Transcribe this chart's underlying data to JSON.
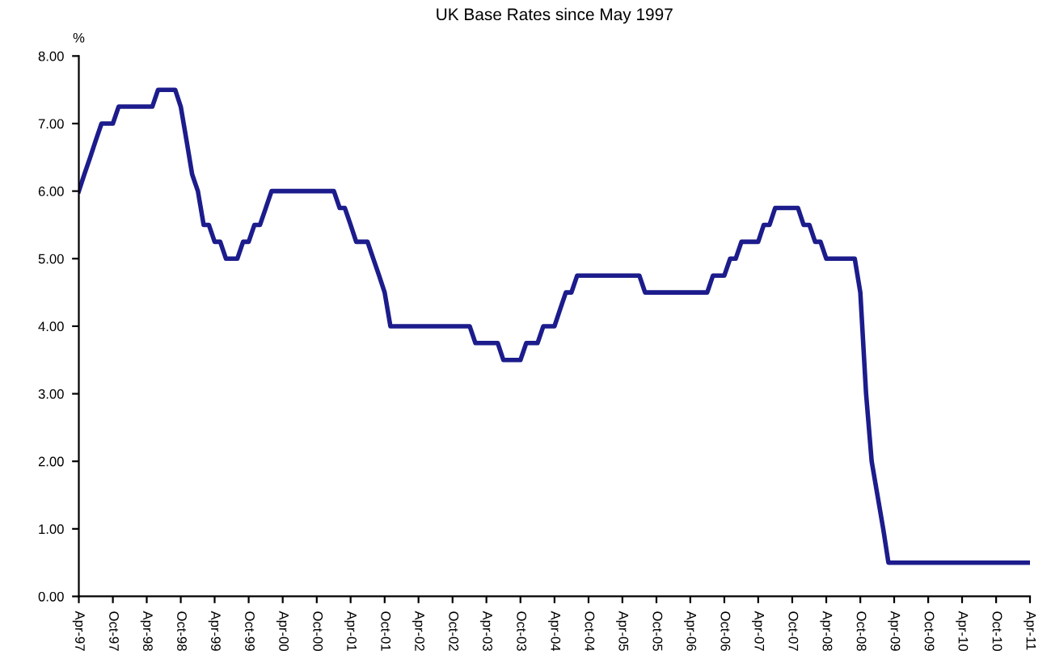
{
  "chart_data": {
    "type": "line",
    "title": "UK Base Rates since May 1997",
    "ylabel": "%",
    "series": [
      {
        "color": "#1c1c8c",
        "x": [
          "1997-04",
          "1997-05",
          "1997-06",
          "1997-07",
          "1997-08",
          "1997-10",
          "1997-11",
          "1998-05",
          "1998-06",
          "1998-09",
          "1998-10",
          "1998-11",
          "1998-12",
          "1999-01",
          "1999-02",
          "1999-03",
          "1999-04",
          "1999-05",
          "1999-06",
          "1999-08",
          "1999-09",
          "1999-10",
          "1999-11",
          "1999-12",
          "2000-01",
          "2000-02",
          "2001-01",
          "2001-02",
          "2001-03",
          "2001-04",
          "2001-05",
          "2001-07",
          "2001-08",
          "2001-09",
          "2001-10",
          "2001-11",
          "2003-01",
          "2003-02",
          "2003-06",
          "2003-07",
          "2003-10",
          "2003-11",
          "2004-01",
          "2004-02",
          "2004-04",
          "2004-05",
          "2004-06",
          "2004-07",
          "2004-08",
          "2005-07",
          "2005-08",
          "2006-07",
          "2006-08",
          "2006-10",
          "2006-11",
          "2006-12",
          "2007-01",
          "2007-04",
          "2007-05",
          "2007-06",
          "2007-07",
          "2007-11",
          "2007-12",
          "2008-01",
          "2008-02",
          "2008-03",
          "2008-04",
          "2008-09",
          "2008-10",
          "2008-11",
          "2008-12",
          "2009-01",
          "2009-02",
          "2009-03",
          "2011-04"
        ],
        "values": [
          6.0,
          6.25,
          6.5,
          6.75,
          7.0,
          7.0,
          7.25,
          7.25,
          7.5,
          7.5,
          7.25,
          6.75,
          6.25,
          6.0,
          5.5,
          5.5,
          5.25,
          5.25,
          5.0,
          5.0,
          5.25,
          5.25,
          5.5,
          5.5,
          5.75,
          6.0,
          6.0,
          5.75,
          5.75,
          5.5,
          5.25,
          5.25,
          5.0,
          4.75,
          4.5,
          4.0,
          4.0,
          3.75,
          3.75,
          3.5,
          3.5,
          3.75,
          3.75,
          4.0,
          4.0,
          4.25,
          4.5,
          4.5,
          4.75,
          4.75,
          4.5,
          4.5,
          4.75,
          4.75,
          5.0,
          5.0,
          5.25,
          5.25,
          5.5,
          5.5,
          5.75,
          5.75,
          5.5,
          5.5,
          5.25,
          5.25,
          5.0,
          5.0,
          4.5,
          3.0,
          2.0,
          1.5,
          1.0,
          0.5,
          0.5
        ]
      }
    ],
    "xlim": [
      "1997-04",
      "2011-04"
    ],
    "xticks": [
      {
        "value": "1997-04",
        "label": "Apr-97"
      },
      {
        "value": "1997-10",
        "label": "Oct-97"
      },
      {
        "value": "1998-04",
        "label": "Apr-98"
      },
      {
        "value": "1998-10",
        "label": "Oct-98"
      },
      {
        "value": "1999-04",
        "label": "Apr-99"
      },
      {
        "value": "1999-10",
        "label": "Oct-99"
      },
      {
        "value": "2000-04",
        "label": "Apr-00"
      },
      {
        "value": "2000-10",
        "label": "Oct-00"
      },
      {
        "value": "2001-04",
        "label": "Apr-01"
      },
      {
        "value": "2001-10",
        "label": "Oct-01"
      },
      {
        "value": "2002-04",
        "label": "Apr-02"
      },
      {
        "value": "2002-10",
        "label": "Oct-02"
      },
      {
        "value": "2003-04",
        "label": "Apr-03"
      },
      {
        "value": "2003-10",
        "label": "Oct-03"
      },
      {
        "value": "2004-04",
        "label": "Apr-04"
      },
      {
        "value": "2004-10",
        "label": "Oct-04"
      },
      {
        "value": "2005-04",
        "label": "Apr-05"
      },
      {
        "value": "2005-10",
        "label": "Oct-05"
      },
      {
        "value": "2006-04",
        "label": "Apr-06"
      },
      {
        "value": "2006-10",
        "label": "Oct-06"
      },
      {
        "value": "2007-04",
        "label": "Apr-07"
      },
      {
        "value": "2007-10",
        "label": "Oct-07"
      },
      {
        "value": "2008-04",
        "label": "Apr-08"
      },
      {
        "value": "2008-10",
        "label": "Oct-08"
      },
      {
        "value": "2009-04",
        "label": "Apr-09"
      },
      {
        "value": "2009-10",
        "label": "Oct-09"
      },
      {
        "value": "2010-04",
        "label": "Apr-10"
      },
      {
        "value": "2010-10",
        "label": "Oct-10"
      },
      {
        "value": "2011-04",
        "label": "Apr-11"
      }
    ],
    "ylim": [
      0,
      8
    ],
    "yticks": [
      {
        "value": 0,
        "label": "0.00"
      },
      {
        "value": 1,
        "label": "1.00"
      },
      {
        "value": 2,
        "label": "2.00"
      },
      {
        "value": 3,
        "label": "3.00"
      },
      {
        "value": 4,
        "label": "4.00"
      },
      {
        "value": 5,
        "label": "5.00"
      },
      {
        "value": 6,
        "label": "6.00"
      },
      {
        "value": 7,
        "label": "7.00"
      },
      {
        "value": 8,
        "label": "8.00"
      }
    ],
    "grid": false,
    "marker": "none",
    "line_style": "solid"
  }
}
